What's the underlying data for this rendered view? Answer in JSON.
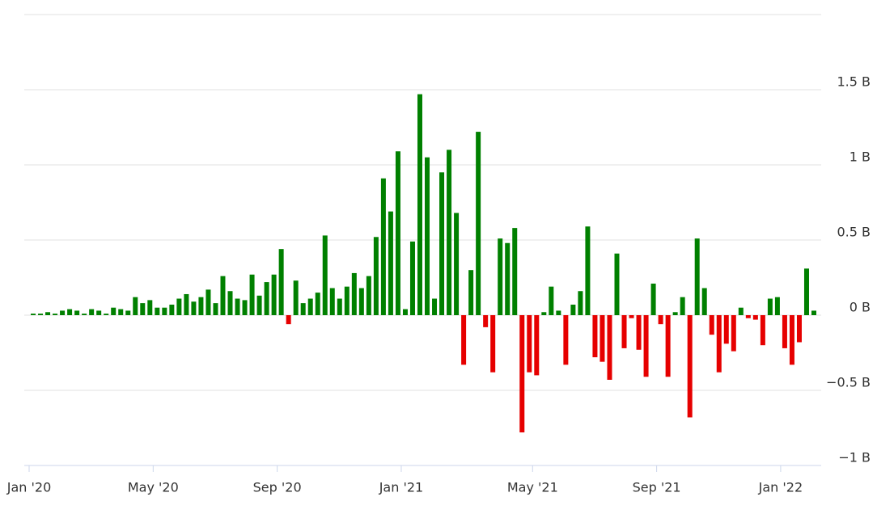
{
  "chart_data": {
    "type": "bar",
    "categories": [
      "Jan '20",
      null,
      null,
      null,
      null,
      null,
      null,
      null,
      null,
      null,
      null,
      null,
      null,
      null,
      null,
      null,
      null,
      "May '20",
      null,
      null,
      null,
      null,
      null,
      null,
      null,
      null,
      null,
      null,
      null,
      null,
      null,
      null,
      null,
      null,
      "Sep '20",
      null,
      null,
      null,
      null,
      null,
      null,
      null,
      null,
      null,
      null,
      null,
      null,
      null,
      null,
      null,
      null,
      "Jan '21",
      null,
      null,
      null,
      null,
      null,
      null,
      null,
      null,
      null,
      null,
      null,
      null,
      null,
      null,
      null,
      null,
      null,
      "May '21",
      null,
      null,
      null,
      null,
      null,
      null,
      null,
      null,
      null,
      null,
      null,
      null,
      null,
      null,
      null,
      null,
      "Sep '21",
      null,
      null,
      null,
      null,
      null,
      null,
      null,
      null,
      null,
      null,
      null,
      null,
      null,
      null,
      null,
      null,
      "Jan '22",
      null,
      null,
      null,
      null
    ],
    "values": [
      0.01,
      0.01,
      0.02,
      0.01,
      0.03,
      0.04,
      0.03,
      0.01,
      0.04,
      0.03,
      0.01,
      0.05,
      0.04,
      0.03,
      0.12,
      0.08,
      0.1,
      0.05,
      0.05,
      0.07,
      0.11,
      0.14,
      0.09,
      0.12,
      0.17,
      0.08,
      0.26,
      0.16,
      0.11,
      0.1,
      0.27,
      0.13,
      0.22,
      0.27,
      0.44,
      -0.06,
      0.23,
      0.08,
      0.11,
      0.15,
      0.53,
      0.18,
      0.11,
      0.19,
      0.28,
      0.18,
      0.26,
      0.52,
      0.91,
      0.69,
      1.09,
      0.04,
      0.49,
      1.47,
      1.05,
      0.11,
      0.95,
      1.1,
      0.68,
      -0.33,
      0.3,
      1.22,
      -0.08,
      -0.38,
      0.51,
      0.48,
      0.58,
      -0.78,
      -0.38,
      -0.4,
      0.02,
      0.19,
      0.03,
      -0.33,
      0.07,
      0.16,
      0.59,
      -0.28,
      -0.31,
      -0.43,
      0.41,
      -0.22,
      -0.02,
      -0.23,
      -0.41,
      0.21,
      -0.06,
      -0.41,
      0.02,
      0.12,
      -0.68,
      0.51,
      0.18,
      -0.13,
      -0.38,
      -0.19,
      -0.24,
      0.05,
      -0.02,
      -0.03,
      -0.2,
      0.11,
      0.12,
      -0.22,
      -0.33,
      -0.18,
      0.31,
      0.03
    ],
    "positive_color": "#008000",
    "negative_color": "#e60000",
    "ylim": [
      -1,
      2
    ],
    "yticks": [
      {
        "value": -1,
        "label": "−1 B"
      },
      {
        "value": -0.5,
        "label": "−0.5 B"
      },
      {
        "value": 0,
        "label": "0 B"
      },
      {
        "value": 0.5,
        "label": "0.5 B"
      },
      {
        "value": 1,
        "label": "1 B"
      },
      {
        "value": 1.5,
        "label": "1.5 B"
      }
    ],
    "grid": true
  }
}
